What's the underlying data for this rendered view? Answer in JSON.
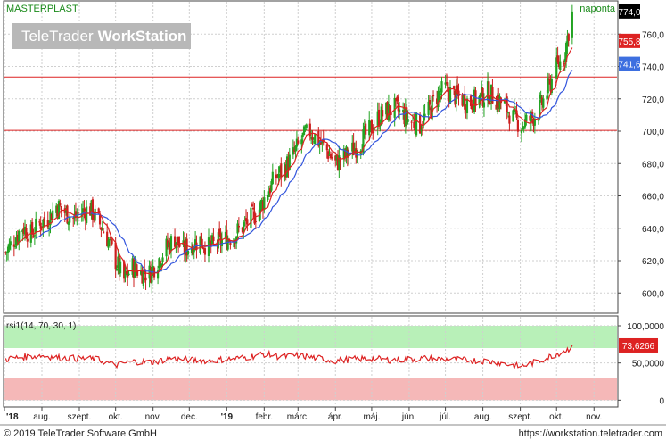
{
  "header": {
    "symbol": "MASTERPLAST",
    "interval": "naponta",
    "watermark": "TeleTrader WorkStation",
    "watermark_left": "TeleTrader",
    "watermark_right": "WorkStation"
  },
  "footer": {
    "copyright": "© 2019 TeleTrader Software GmbH",
    "url": "https://workstation.teletrader.com"
  },
  "colors": {
    "up": "#22a322",
    "down": "#cc1f1f",
    "ma_fast": "#dd2222",
    "ma_slow": "#3355dd",
    "hline": "#dd2222",
    "rsi_line": "#dd2222",
    "overbought_zone": "#b8f0b8",
    "oversold_zone": "#f5b8b8",
    "grid": "#cfcfcf"
  },
  "chart_data": [
    {
      "type": "candlestick",
      "title": "MASTERPLAST",
      "interval": "naponta",
      "ylim": [
        588,
        780
      ],
      "y_ticks": [
        600,
        620,
        640,
        660,
        680,
        700,
        720,
        740,
        760
      ],
      "y_tick_labels": [
        "600,0",
        "620,0",
        "640,0",
        "660,0",
        "680,0",
        "700,0",
        "720,0",
        "740,0",
        "760,0"
      ],
      "x_range": [
        "2018-07-01",
        "2019-11-20"
      ],
      "x_ticks": [
        "2018-07-01",
        "2018-08-01",
        "2018-09-01",
        "2018-10-01",
        "2018-11-01",
        "2018-12-01",
        "2019-01-01",
        "2019-02-01",
        "2019-03-01",
        "2019-04-01",
        "2019-05-01",
        "2019-06-01",
        "2019-07-01",
        "2019-08-01",
        "2019-09-01",
        "2019-10-01",
        "2019-11-01"
      ],
      "x_tick_labels": [
        "'18",
        "aug.",
        "szept.",
        "okt.",
        "nov.",
        "dec.",
        "'19",
        "febr.",
        "márc.",
        "ápr.",
        "máj.",
        "jún.",
        "júl.",
        "aug.",
        "szept.",
        "okt.",
        "nov."
      ],
      "horizontal_lines": [
        733.5,
        700.5
      ],
      "price_labels": [
        {
          "value": 774.0,
          "label": "774,0",
          "kind": "last"
        },
        {
          "value": 755.8,
          "label": "755,8",
          "kind": "ma_fast"
        },
        {
          "value": 741.6,
          "label": "741,6",
          "kind": "ma_slow"
        }
      ],
      "grid": true,
      "series": [
        {
          "points": [
            {
              "date": "2018-07-02",
              "close": 625
            },
            {
              "date": "2018-07-09",
              "close": 633
            },
            {
              "date": "2018-07-16",
              "close": 641
            },
            {
              "date": "2018-07-23",
              "close": 636
            },
            {
              "date": "2018-07-30",
              "close": 643
            },
            {
              "date": "2018-08-06",
              "close": 646
            },
            {
              "date": "2018-08-13",
              "close": 654
            },
            {
              "date": "2018-08-20",
              "close": 650
            },
            {
              "date": "2018-08-27",
              "close": 646
            },
            {
              "date": "2018-09-03",
              "close": 650
            },
            {
              "date": "2018-09-10",
              "close": 652
            },
            {
              "date": "2018-09-17",
              "close": 644
            },
            {
              "date": "2018-09-24",
              "close": 634
            },
            {
              "date": "2018-10-01",
              "close": 620
            },
            {
              "date": "2018-10-08",
              "close": 608
            },
            {
              "date": "2018-10-15",
              "close": 616
            },
            {
              "date": "2018-10-22",
              "close": 613
            },
            {
              "date": "2018-10-29",
              "close": 612
            },
            {
              "date": "2018-11-05",
              "close": 620
            },
            {
              "date": "2018-11-12",
              "close": 628
            },
            {
              "date": "2018-11-19",
              "close": 634
            },
            {
              "date": "2018-11-26",
              "close": 626
            },
            {
              "date": "2018-12-03",
              "close": 630
            },
            {
              "date": "2018-12-10",
              "close": 633
            },
            {
              "date": "2018-12-17",
              "close": 628
            },
            {
              "date": "2018-12-24",
              "close": 631
            },
            {
              "date": "2018-12-31",
              "close": 633
            },
            {
              "date": "2019-01-07",
              "close": 636
            },
            {
              "date": "2019-01-14",
              "close": 641
            },
            {
              "date": "2019-01-21",
              "close": 646
            },
            {
              "date": "2019-01-28",
              "close": 652
            },
            {
              "date": "2019-02-04",
              "close": 663
            },
            {
              "date": "2019-02-11",
              "close": 672
            },
            {
              "date": "2019-02-18",
              "close": 677
            },
            {
              "date": "2019-02-25",
              "close": 685
            },
            {
              "date": "2019-03-04",
              "close": 695
            },
            {
              "date": "2019-03-11",
              "close": 700
            },
            {
              "date": "2019-03-18",
              "close": 694
            },
            {
              "date": "2019-03-25",
              "close": 688
            },
            {
              "date": "2019-04-01",
              "close": 680
            },
            {
              "date": "2019-04-08",
              "close": 684
            },
            {
              "date": "2019-04-15",
              "close": 688
            },
            {
              "date": "2019-04-22",
              "close": 694
            },
            {
              "date": "2019-04-29",
              "close": 700
            },
            {
              "date": "2019-05-06",
              "close": 708
            },
            {
              "date": "2019-05-13",
              "close": 712
            },
            {
              "date": "2019-05-20",
              "close": 714
            },
            {
              "date": "2019-05-27",
              "close": 710
            },
            {
              "date": "2019-06-03",
              "close": 706
            },
            {
              "date": "2019-06-10",
              "close": 704
            },
            {
              "date": "2019-06-17",
              "close": 712
            },
            {
              "date": "2019-06-24",
              "close": 722
            },
            {
              "date": "2019-07-01",
              "close": 726
            },
            {
              "date": "2019-07-08",
              "close": 722
            },
            {
              "date": "2019-07-15",
              "close": 720
            },
            {
              "date": "2019-07-22",
              "close": 718
            },
            {
              "date": "2019-07-29",
              "close": 720
            },
            {
              "date": "2019-08-05",
              "close": 724
            },
            {
              "date": "2019-08-12",
              "close": 720
            },
            {
              "date": "2019-08-19",
              "close": 716
            },
            {
              "date": "2019-08-26",
              "close": 708
            },
            {
              "date": "2019-09-02",
              "close": 704
            },
            {
              "date": "2019-09-09",
              "close": 707
            },
            {
              "date": "2019-09-16",
              "close": 712
            },
            {
              "date": "2019-09-23",
              "close": 724
            },
            {
              "date": "2019-09-30",
              "close": 738
            },
            {
              "date": "2019-10-07",
              "close": 746
            },
            {
              "date": "2019-10-14",
              "close": 774
            }
          ]
        }
      ]
    },
    {
      "type": "line",
      "title": "rsi1(14, 70, 30, 1)",
      "ylim": [
        -8,
        112
      ],
      "y_ticks": [
        0,
        50,
        100
      ],
      "y_tick_labels": [
        "0",
        "50,0000",
        "100,0000"
      ],
      "zones": [
        {
          "from": 70,
          "to": 100,
          "kind": "overbought"
        },
        {
          "from": 0,
          "to": 30,
          "kind": "oversold"
        }
      ],
      "last_value": 73.6266,
      "last_value_label": "73,6266",
      "series": [
        {
          "points": [
            {
              "date": "2018-07-02",
              "value": 55
            },
            {
              "date": "2018-07-16",
              "value": 58
            },
            {
              "date": "2018-08-01",
              "value": 60
            },
            {
              "date": "2018-08-15",
              "value": 57
            },
            {
              "date": "2018-09-01",
              "value": 56
            },
            {
              "date": "2018-09-15",
              "value": 55
            },
            {
              "date": "2018-10-01",
              "value": 47
            },
            {
              "date": "2018-10-15",
              "value": 52
            },
            {
              "date": "2018-11-01",
              "value": 51
            },
            {
              "date": "2018-11-15",
              "value": 56
            },
            {
              "date": "2018-12-01",
              "value": 54
            },
            {
              "date": "2018-12-15",
              "value": 53
            },
            {
              "date": "2019-01-01",
              "value": 55
            },
            {
              "date": "2019-01-15",
              "value": 57
            },
            {
              "date": "2019-02-01",
              "value": 62
            },
            {
              "date": "2019-02-15",
              "value": 58
            },
            {
              "date": "2019-03-01",
              "value": 60
            },
            {
              "date": "2019-03-15",
              "value": 57
            },
            {
              "date": "2019-04-01",
              "value": 53
            },
            {
              "date": "2019-04-15",
              "value": 55
            },
            {
              "date": "2019-05-01",
              "value": 56
            },
            {
              "date": "2019-05-15",
              "value": 54
            },
            {
              "date": "2019-06-01",
              "value": 55
            },
            {
              "date": "2019-06-15",
              "value": 56
            },
            {
              "date": "2019-07-01",
              "value": 55
            },
            {
              "date": "2019-07-15",
              "value": 54
            },
            {
              "date": "2019-08-01",
              "value": 53
            },
            {
              "date": "2019-08-15",
              "value": 50
            },
            {
              "date": "2019-09-01",
              "value": 45
            },
            {
              "date": "2019-09-15",
              "value": 52
            },
            {
              "date": "2019-10-01",
              "value": 62
            },
            {
              "date": "2019-10-10",
              "value": 68
            },
            {
              "date": "2019-10-17",
              "value": 73.6
            }
          ]
        }
      ]
    }
  ]
}
